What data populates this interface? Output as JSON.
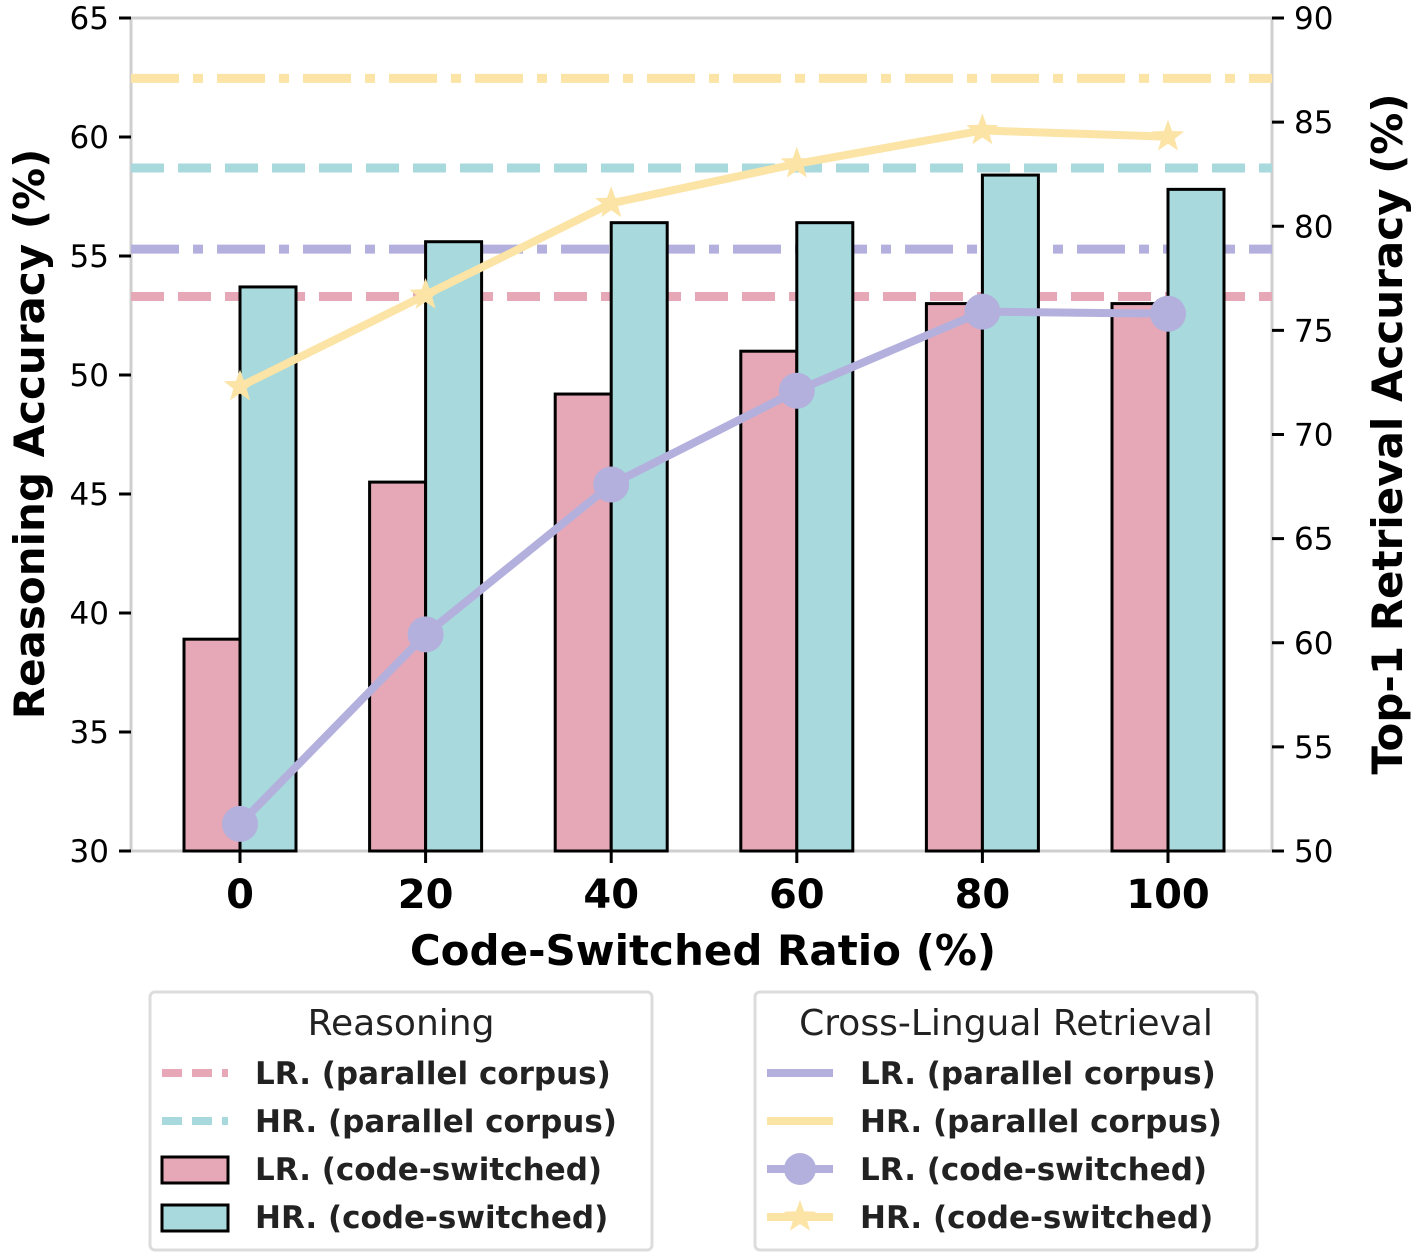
{
  "chart_data": {
    "type": "bar",
    "categories": [
      "0",
      "20",
      "40",
      "60",
      "80",
      "100"
    ],
    "xlabel": "Code-Switched Ratio (%)",
    "ylabel": "Reasoning Accuracy (%)",
    "ylabel_right": "Top-1 Retrieval Accuracy (%)",
    "ylim": [
      30,
      65
    ],
    "ylim_right": [
      50,
      90
    ],
    "yticks": [
      "30",
      "35",
      "40",
      "45",
      "50",
      "55",
      "60",
      "65"
    ],
    "yticks_right": [
      "50",
      "55",
      "60",
      "65",
      "70",
      "75",
      "80",
      "85",
      "90"
    ],
    "bar_series": [
      {
        "name": "LR. (code-switched)",
        "color": "#e6a8b6",
        "values": [
          38.9,
          45.5,
          49.2,
          51.0,
          53.0,
          53.0
        ]
      },
      {
        "name": "HR. (code-switched)",
        "color": "#a8d9dc",
        "values": [
          53.7,
          55.6,
          56.4,
          56.4,
          58.4,
          57.8
        ]
      }
    ],
    "reference_lines_left": [
      {
        "name": "LR. (parallel corpus)",
        "value": 53.3,
        "color": "#e6a8b6",
        "style": "dashed"
      },
      {
        "name": "HR. (parallel corpus)",
        "value": 58.7,
        "color": "#a8d9dc",
        "style": "dashed"
      }
    ],
    "reference_lines_right": [
      {
        "name": "LR. (parallel corpus)",
        "value": 78.9,
        "color": "#b3b0dd",
        "style": "dashdot"
      },
      {
        "name": "HR. (parallel corpus)",
        "value": 87.1,
        "color": "#fbe4a6",
        "style": "dashdot"
      }
    ],
    "line_series_right": [
      {
        "name": "LR. (code-switched)",
        "color": "#b3b0dd",
        "marker": "circle",
        "values": [
          51.3,
          60.4,
          67.6,
          72.1,
          75.9,
          75.8
        ]
      },
      {
        "name": "HR. (code-switched)",
        "color": "#fbe4a6",
        "marker": "star",
        "values": [
          72.3,
          76.7,
          81.1,
          83.0,
          84.6,
          84.3
        ]
      }
    ],
    "legends": [
      {
        "title": "Reasoning",
        "items": [
          "LR. (parallel corpus)",
          "HR. (parallel corpus)",
          "LR. (code-switched)",
          "HR. (code-switched)"
        ]
      },
      {
        "title": "Cross-Lingual Retrieval",
        "items": [
          "LR. (parallel corpus)",
          "HR. (parallel corpus)",
          "LR. (code-switched)",
          "HR. (code-switched)"
        ]
      }
    ]
  }
}
